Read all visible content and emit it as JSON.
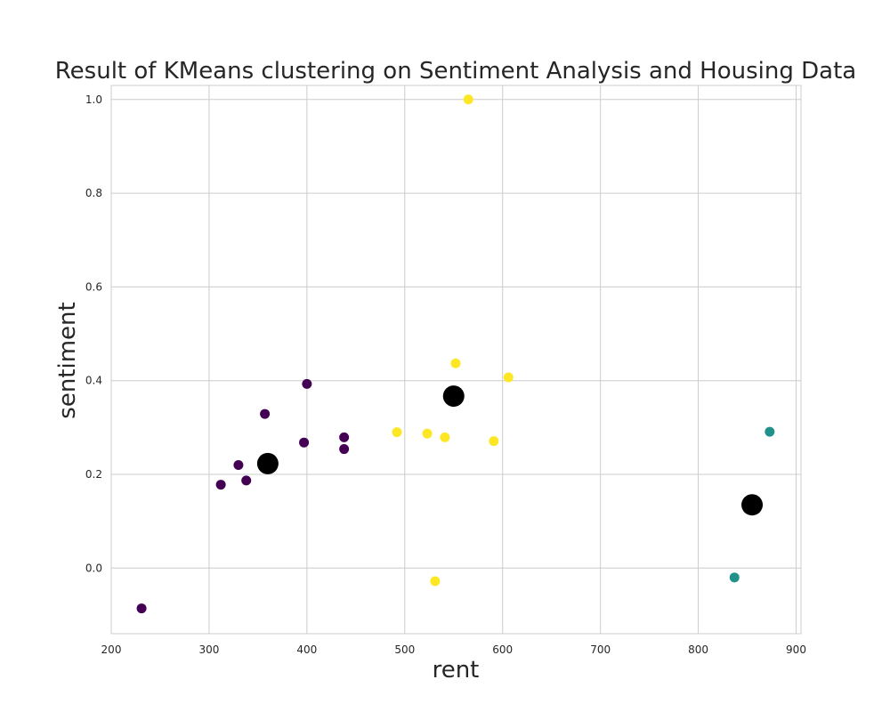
{
  "chart_data": {
    "type": "scatter",
    "title": "Result of  KMeans clustering on Sentiment Analysis and  Housing Data",
    "xlabel": "rent",
    "ylabel": "sentiment",
    "xlim": [
      200,
      905
    ],
    "ylim": [
      -0.14,
      1.03
    ],
    "xticks": [
      200,
      300,
      400,
      500,
      600,
      700,
      800,
      900
    ],
    "yticks": [
      0.0,
      0.2,
      0.4,
      0.6,
      0.8,
      1.0
    ],
    "ytick_labels": [
      "0.0",
      "0.2",
      "0.4",
      "0.6",
      "0.8",
      "1.0"
    ],
    "grid": true,
    "colors": {
      "cluster_0": "#440154",
      "cluster_1": "#21918c",
      "cluster_2": "#fde725",
      "centroid": "#000000"
    },
    "series": [
      {
        "cluster": "cluster_0",
        "points": [
          [
            231,
            -0.086
          ],
          [
            312,
            0.178
          ],
          [
            330,
            0.22
          ],
          [
            338,
            0.187
          ],
          [
            357,
            0.329
          ],
          [
            359,
            0.212
          ],
          [
            397,
            0.268
          ],
          [
            400,
            0.393
          ],
          [
            438,
            0.279
          ],
          [
            438,
            0.254
          ]
        ]
      },
      {
        "cluster": "cluster_1",
        "points": [
          [
            837,
            -0.02
          ],
          [
            873,
            0.291
          ]
        ]
      },
      {
        "cluster": "cluster_2",
        "points": [
          [
            492,
            0.29
          ],
          [
            523,
            0.287
          ],
          [
            531,
            -0.028
          ],
          [
            541,
            0.279
          ],
          [
            552,
            0.437
          ],
          [
            565,
            1.0
          ],
          [
            591,
            0.271
          ],
          [
            606,
            0.407
          ]
        ]
      }
    ],
    "centroids": [
      [
        360,
        0.223
      ],
      [
        550,
        0.367
      ],
      [
        855,
        0.135
      ]
    ]
  }
}
